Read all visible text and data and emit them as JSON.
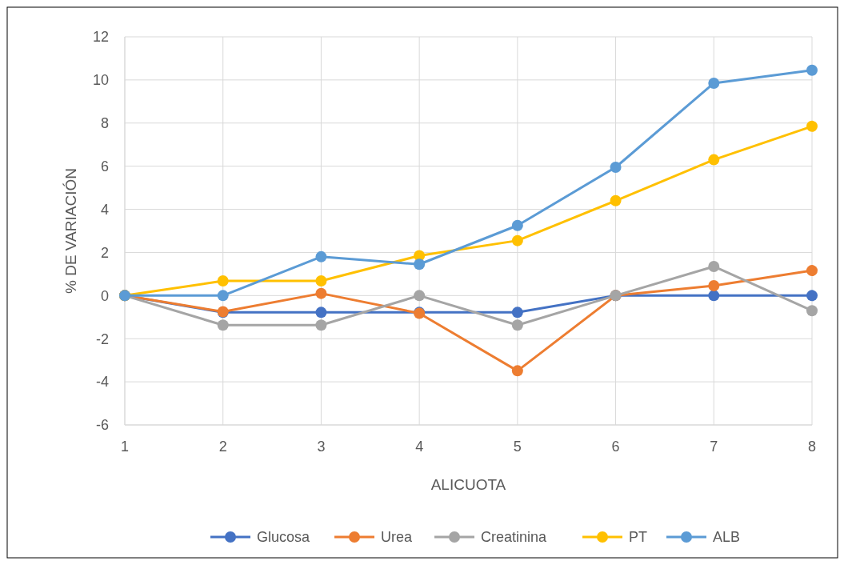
{
  "chart_data": {
    "type": "line",
    "xlabel": "ALICUOTA",
    "ylabel": "% DE VARIACIÓN",
    "x": [
      1,
      2,
      3,
      4,
      5,
      6,
      7,
      8
    ],
    "xlim": [
      1,
      8
    ],
    "xticks": [
      1,
      2,
      3,
      4,
      5,
      6,
      7,
      8
    ],
    "ylim": [
      -6,
      12
    ],
    "yticks": [
      -6,
      -4,
      -2,
      0,
      2,
      4,
      6,
      8,
      10,
      12
    ],
    "grid": true,
    "legend": "bottom",
    "marker": "circle",
    "line_style": "solid",
    "series": [
      {
        "name": "Glucosa",
        "color": "#4472c4",
        "values": [
          0,
          -0.78,
          -0.78,
          -0.78,
          -0.78,
          0,
          0,
          0
        ]
      },
      {
        "name": "Urea",
        "color": "#ed7d31",
        "values": [
          0,
          -0.75,
          0.1,
          -0.82,
          -3.49,
          0,
          0.46,
          1.16
        ]
      },
      {
        "name": "Creatinina",
        "color": "#a5a5a5",
        "values": [
          0,
          -1.37,
          -1.37,
          0,
          -1.37,
          0,
          1.35,
          -0.7
        ]
      },
      {
        "name": "PT",
        "color": "#ffc000",
        "values": [
          0,
          0.68,
          0.68,
          1.85,
          2.55,
          4.4,
          6.3,
          7.85
        ]
      },
      {
        "name": "ALB",
        "color": "#5b9bd5",
        "values": [
          0,
          0,
          1.8,
          1.45,
          3.25,
          5.95,
          9.85,
          10.45
        ]
      }
    ]
  }
}
